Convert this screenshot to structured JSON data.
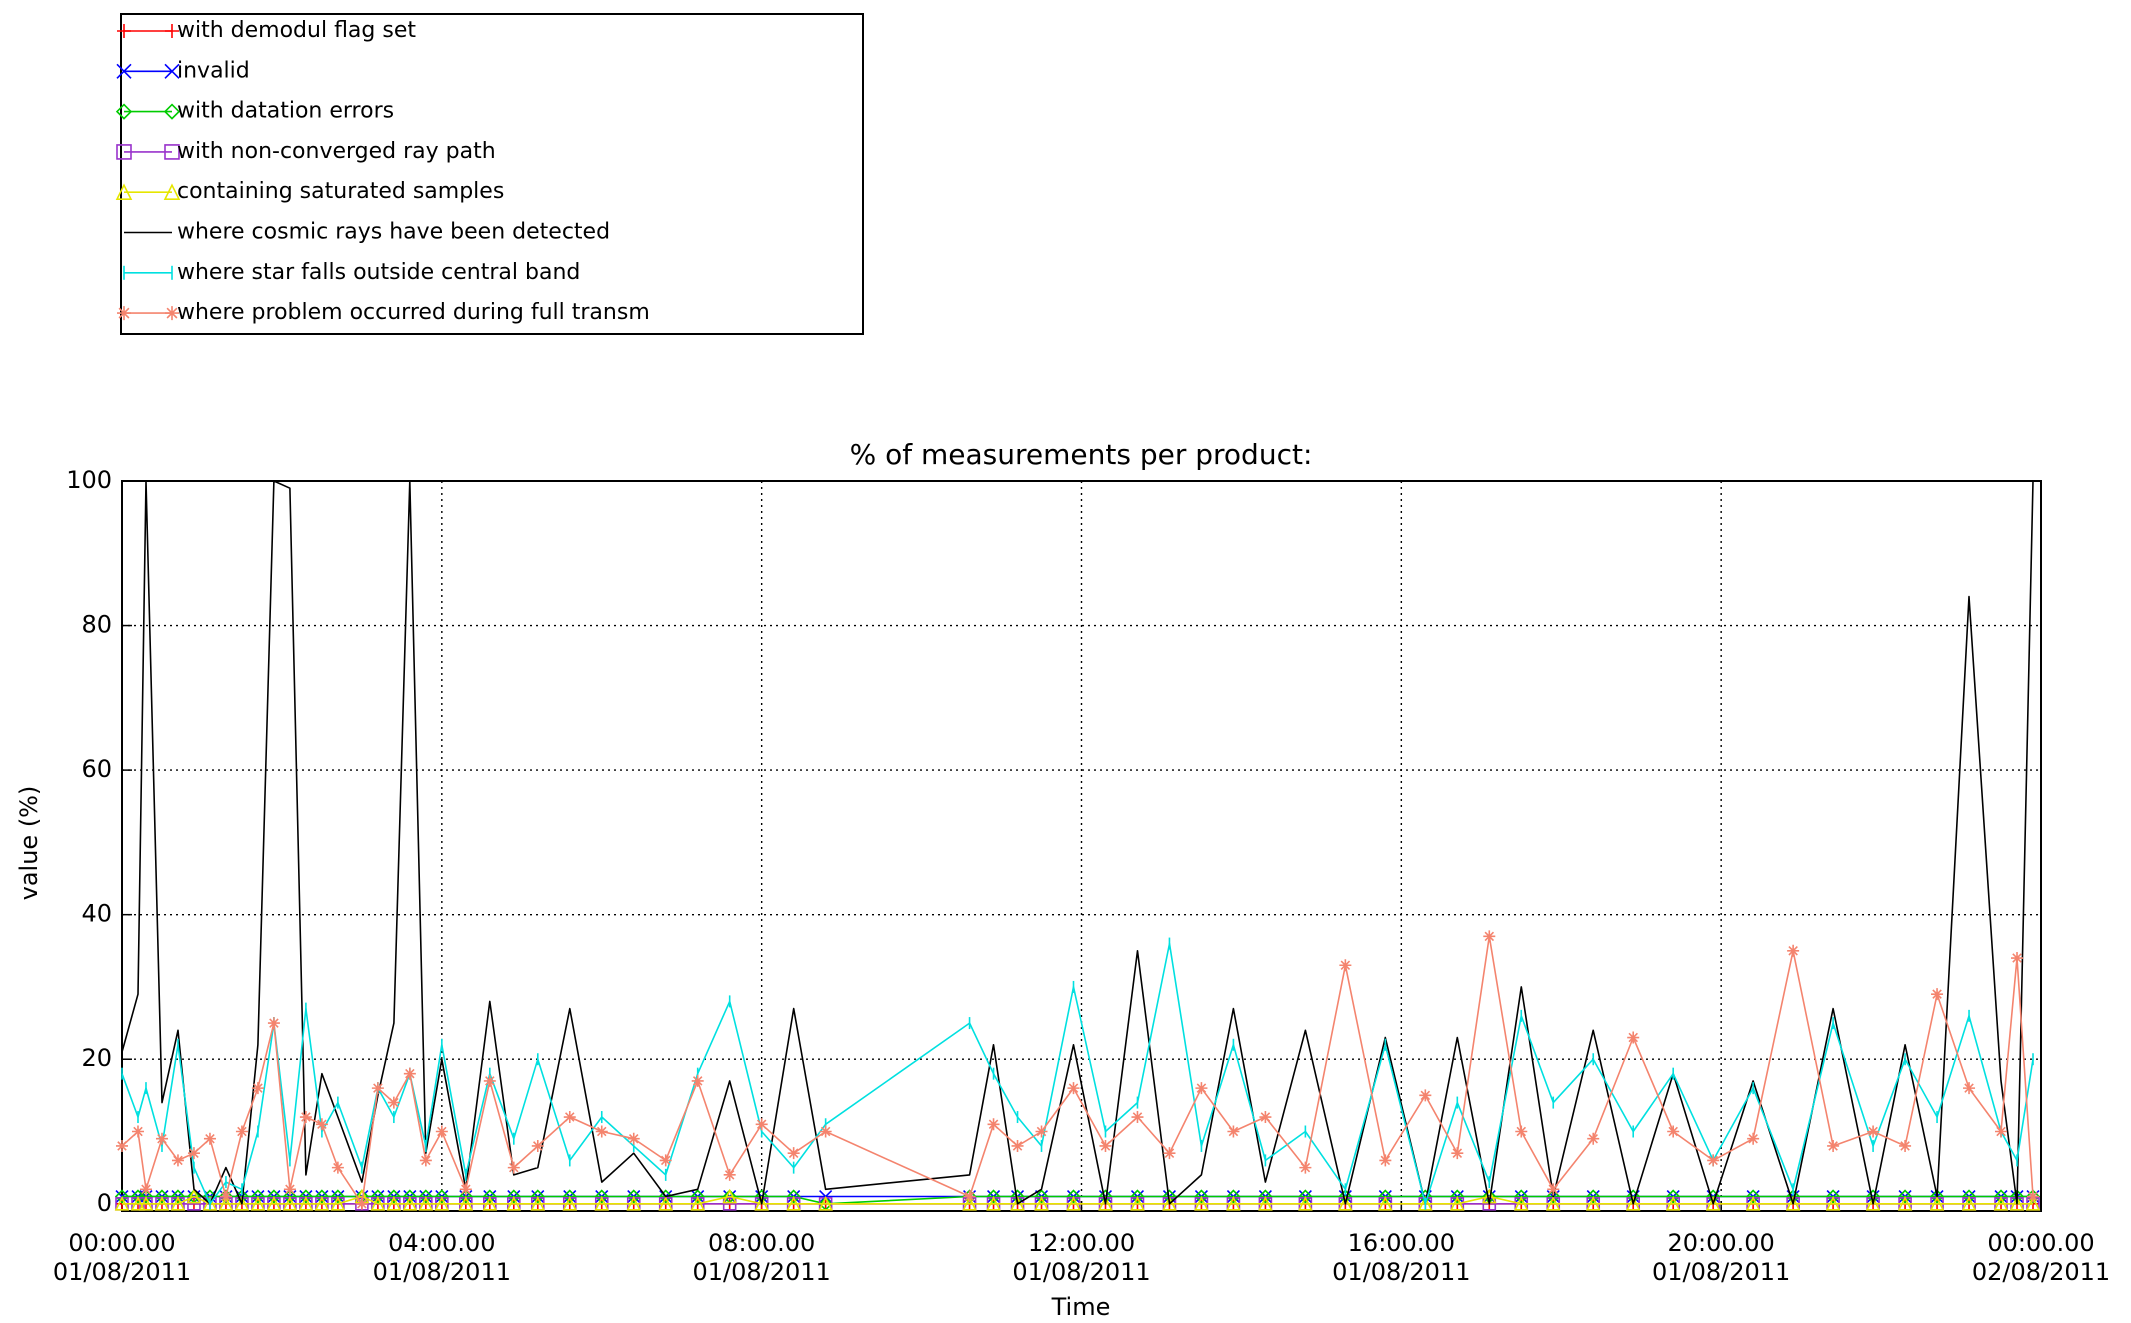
{
  "chart_data": {
    "type": "line",
    "title": "% of measurements per product:",
    "x_label": "Time",
    "y_label": "value (%)",
    "xlim": [
      0,
      24
    ],
    "xticks": [
      {
        "value": 0,
        "label": [
          "00:00.00",
          "01/08/2011"
        ]
      },
      {
        "value": 4,
        "label": [
          "04:00.00",
          "01/08/2011"
        ]
      },
      {
        "value": 8,
        "label": [
          "08:00.00",
          "01/08/2011"
        ]
      },
      {
        "value": 12,
        "label": [
          "12:00.00",
          "01/08/2011"
        ]
      },
      {
        "value": 16,
        "label": [
          "16:00.00",
          "01/08/2011"
        ]
      },
      {
        "value": 20,
        "label": [
          "20:00.00",
          "01/08/2011"
        ]
      },
      {
        "value": 24,
        "label": [
          "00:00.00",
          "02/08/2011"
        ]
      }
    ],
    "ylim": [
      -1,
      100
    ],
    "yticks": [
      0,
      20,
      40,
      60,
      80,
      100
    ],
    "grid": true,
    "legend": "top-left",
    "x": [
      0.0,
      0.2,
      0.3,
      0.5,
      0.7,
      0.9,
      1.1,
      1.3,
      1.5,
      1.7,
      1.9,
      2.1,
      2.3,
      2.5,
      2.7,
      3.0,
      3.2,
      3.4,
      3.6,
      3.8,
      4.0,
      4.3,
      4.6,
      4.9,
      5.2,
      5.6,
      6.0,
      6.4,
      6.8,
      7.2,
      7.6,
      8.0,
      8.4,
      8.8,
      10.6,
      10.9,
      11.2,
      11.5,
      11.9,
      12.3,
      12.7,
      13.1,
      13.5,
      13.9,
      14.3,
      14.8,
      15.3,
      15.8,
      16.3,
      16.7,
      17.1,
      17.5,
      17.9,
      18.4,
      18.9,
      19.4,
      19.9,
      20.4,
      20.9,
      21.4,
      21.9,
      22.3,
      22.7,
      23.1,
      23.5,
      23.7,
      23.9
    ],
    "series": [
      {
        "name": "with demodul flag set",
        "color": "#ff0000",
        "marker": "plus",
        "values": [
          0,
          0,
          0,
          0,
          0,
          0,
          0,
          0,
          0,
          0,
          0,
          0,
          0,
          0,
          0,
          0,
          0,
          0,
          0,
          0,
          0,
          0,
          0,
          0,
          0,
          0,
          0,
          0,
          0,
          0,
          0,
          0,
          0,
          0,
          0,
          0,
          0,
          0,
          0,
          0,
          0,
          0,
          0,
          0,
          0,
          0,
          0,
          0,
          0,
          0,
          0,
          0,
          0,
          0,
          0,
          0,
          0,
          0,
          0,
          0,
          0,
          0,
          0,
          0,
          0,
          0,
          0
        ]
      },
      {
        "name": "invalid",
        "color": "#0000ff",
        "marker": "x",
        "values": [
          1,
          1,
          1,
          1,
          1,
          1,
          1,
          1,
          1,
          1,
          1,
          1,
          1,
          1,
          1,
          1,
          1,
          1,
          1,
          1,
          1,
          1,
          1,
          1,
          1,
          1,
          1,
          1,
          1,
          1,
          1,
          1,
          1,
          1,
          1,
          1,
          1,
          1,
          1,
          1,
          1,
          1,
          1,
          1,
          1,
          1,
          1,
          1,
          1,
          1,
          1,
          1,
          1,
          1,
          1,
          1,
          1,
          1,
          1,
          1,
          1,
          1,
          1,
          1,
          1,
          1,
          1
        ]
      },
      {
        "name": "with datation errors",
        "color": "#00cc00",
        "marker": "diamond",
        "values": [
          1,
          1,
          1,
          1,
          1,
          1,
          1,
          1,
          1,
          1,
          1,
          1,
          1,
          1,
          1,
          1,
          1,
          1,
          1,
          1,
          1,
          1,
          1,
          1,
          1,
          1,
          1,
          1,
          1,
          1,
          1,
          1,
          1,
          0,
          1,
          1,
          1,
          1,
          1,
          1,
          1,
          1,
          1,
          1,
          1,
          1,
          1,
          1,
          1,
          1,
          1,
          1,
          1,
          1,
          1,
          1,
          1,
          1,
          1,
          1,
          1,
          1,
          1,
          1,
          1,
          1,
          1
        ]
      },
      {
        "name": "with non-converged ray path",
        "color": "#9933cc",
        "marker": "square",
        "values": [
          0,
          0,
          0,
          0,
          0,
          0,
          0,
          0,
          0,
          0,
          0,
          0,
          0,
          0,
          0,
          0,
          0,
          0,
          0,
          0,
          0,
          0,
          0,
          0,
          0,
          0,
          0,
          0,
          0,
          0,
          0,
          0,
          0,
          0,
          0,
          0,
          0,
          0,
          0,
          0,
          0,
          0,
          0,
          0,
          0,
          0,
          0,
          0,
          0,
          0,
          0,
          0,
          0,
          0,
          0,
          0,
          0,
          0,
          0,
          0,
          0,
          0,
          0,
          0,
          0,
          0,
          0
        ]
      },
      {
        "name": "containing saturated samples",
        "color": "#e6e600",
        "marker": "triangle",
        "values": [
          0,
          0,
          0,
          0,
          0,
          1,
          0,
          0,
          0,
          0,
          0,
          0,
          0,
          0,
          0,
          1,
          0,
          0,
          0,
          0,
          0,
          0,
          0,
          0,
          0,
          0,
          0,
          0,
          0,
          0,
          1,
          0,
          0,
          0,
          0,
          0,
          0,
          0,
          0,
          0,
          0,
          0,
          0,
          0,
          0,
          0,
          0,
          0,
          0,
          0,
          1,
          0,
          0,
          0,
          0,
          0,
          0,
          0,
          0,
          0,
          0,
          0,
          0,
          0,
          0,
          0,
          0
        ]
      },
      {
        "name": "where cosmic rays have been detected",
        "color": "#000000",
        "marker": "none",
        "values": [
          21,
          29,
          100,
          14,
          24,
          2,
          0,
          5,
          0,
          22,
          100,
          99,
          4,
          18,
          12,
          3,
          15,
          25,
          100,
          7,
          20,
          2,
          28,
          4,
          5,
          27,
          3,
          7,
          1,
          2,
          17,
          0,
          27,
          2,
          4,
          22,
          0,
          2,
          22,
          0,
          35,
          0,
          4,
          27,
          3,
          24,
          0,
          23,
          0,
          23,
          0,
          30,
          1,
          24,
          0,
          18,
          0,
          17,
          0,
          27,
          0,
          22,
          1,
          84,
          17,
          0,
          100
        ]
      },
      {
        "name": "where star falls outside central band",
        "color": "#00e0e0",
        "marker": "vbar",
        "values": [
          18,
          12,
          16,
          8,
          22,
          5,
          0,
          3,
          2,
          10,
          25,
          6,
          27,
          10,
          14,
          5,
          16,
          12,
          18,
          8,
          22,
          4,
          18,
          9,
          20,
          6,
          12,
          8,
          4,
          18,
          28,
          10,
          5,
          11,
          25,
          18,
          12,
          8,
          30,
          10,
          14,
          36,
          8,
          22,
          6,
          10,
          2,
          22,
          0,
          14,
          3,
          26,
          14,
          20,
          10,
          18,
          6,
          16,
          2,
          25,
          8,
          20,
          12,
          26,
          10,
          6,
          20
        ]
      },
      {
        "name": "where problem occurred during full transm",
        "color": "#f4846e",
        "marker": "asterisk",
        "values": [
          8,
          10,
          2,
          9,
          6,
          7,
          9,
          1,
          10,
          16,
          25,
          2,
          12,
          11,
          5,
          0,
          16,
          14,
          18,
          6,
          10,
          2,
          17,
          5,
          8,
          12,
          10,
          9,
          6,
          17,
          4,
          11,
          7,
          10,
          1,
          11,
          8,
          10,
          16,
          8,
          12,
          7,
          16,
          10,
          12,
          5,
          33,
          6,
          15,
          7,
          37,
          10,
          2,
          9,
          23,
          10,
          6,
          9,
          35,
          8,
          10,
          8,
          29,
          16,
          10,
          34,
          1
        ]
      }
    ]
  }
}
